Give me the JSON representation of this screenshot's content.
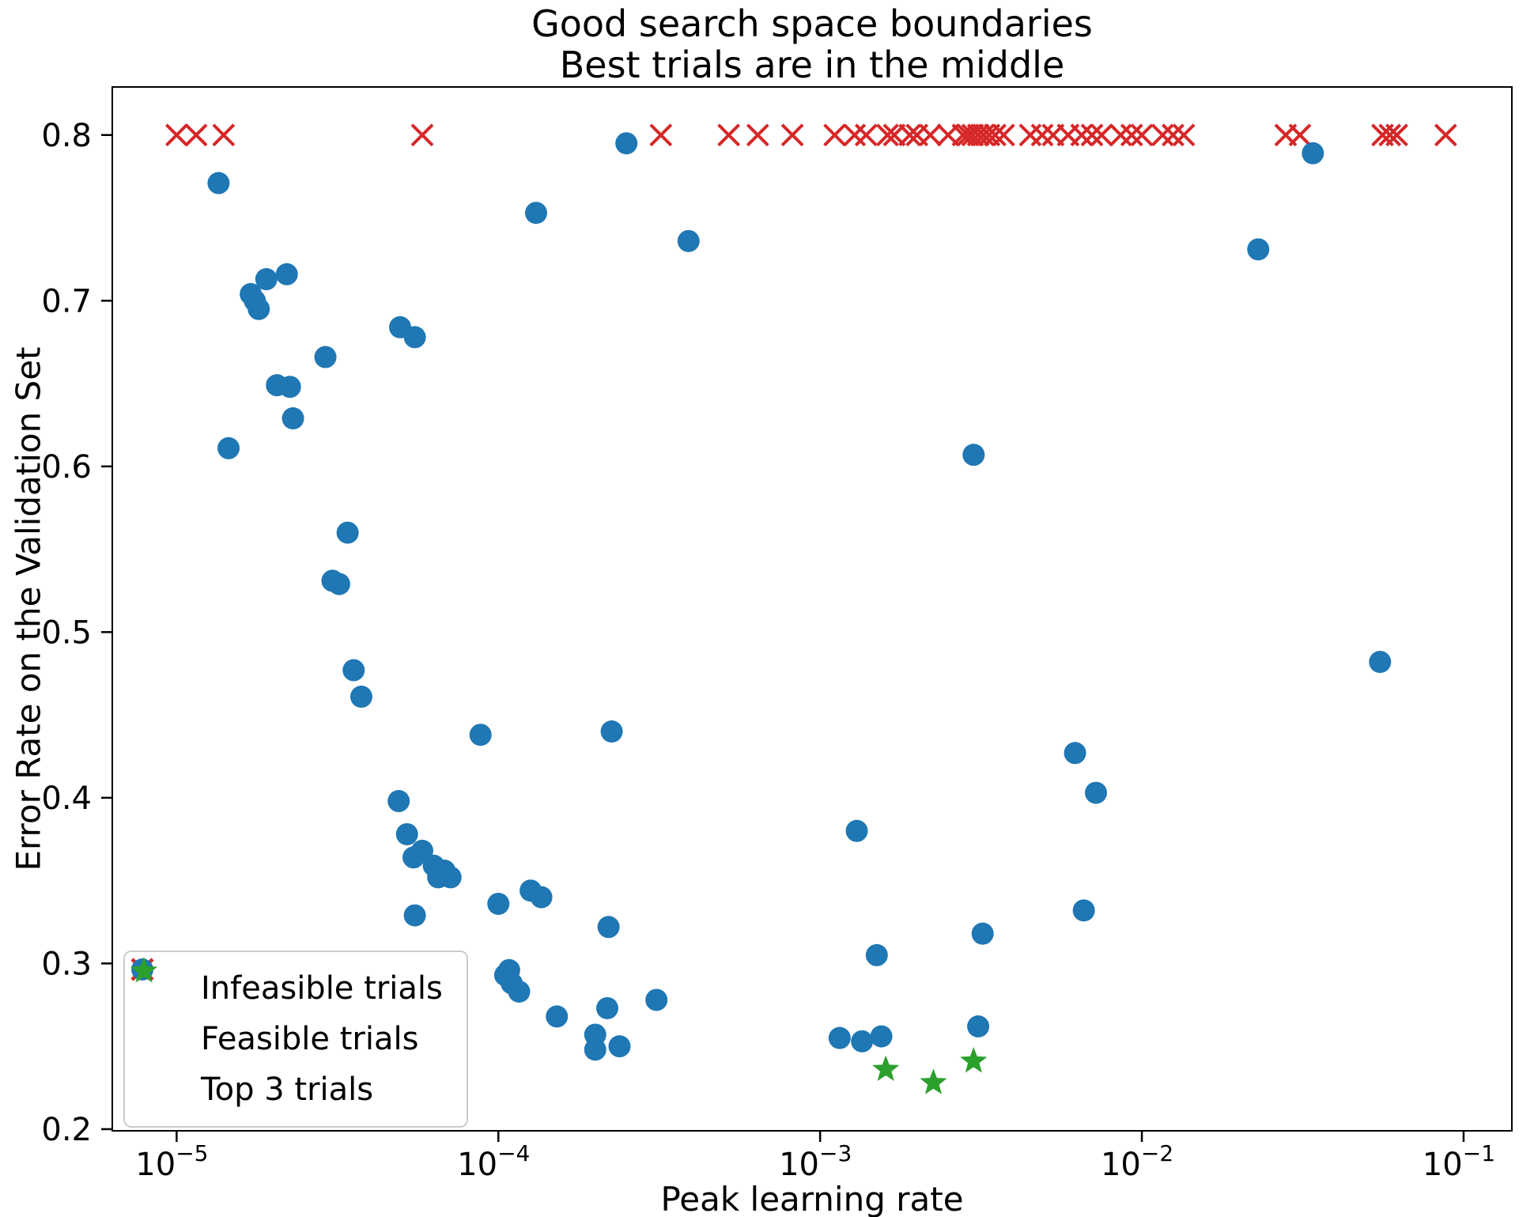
{
  "chart_data": {
    "type": "scatter",
    "title_lines": [
      "Good search space boundaries",
      "Best trials are in the middle"
    ],
    "xlabel": "Peak learning rate",
    "ylabel": "Error Rate on the Validation Set",
    "x_scale": "log10",
    "xlim_log10": [
      -5.2,
      -0.85
    ],
    "ylim": [
      0.199,
      0.829
    ],
    "x_tick_exponents": [
      -5,
      -4,
      -3,
      -2,
      -1
    ],
    "y_tick_values": [
      "0.2",
      "0.3",
      "0.4",
      "0.5",
      "0.6",
      "0.7",
      "0.8"
    ],
    "grid": false,
    "legend_position": "lower left",
    "series": [
      {
        "name": "Infeasible trials",
        "marker": "x",
        "color": "#d62728",
        "points": [
          [
            1e-05,
            0.8
          ],
          [
            1.15e-05,
            0.8
          ],
          [
            1.4e-05,
            0.8
          ],
          [
            5.8e-05,
            0.8
          ],
          [
            0.00032,
            0.8
          ],
          [
            0.00052,
            0.8
          ],
          [
            0.00064,
            0.8
          ],
          [
            0.00082,
            0.8
          ],
          [
            0.00111,
            0.8
          ],
          [
            0.00128,
            0.8
          ],
          [
            0.00139,
            0.8
          ],
          [
            0.00162,
            0.8
          ],
          [
            0.0017,
            0.8
          ],
          [
            0.0019,
            0.8
          ],
          [
            0.002,
            0.8
          ],
          [
            0.0022,
            0.8
          ],
          [
            0.0025,
            0.8
          ],
          [
            0.00278,
            0.8
          ],
          [
            0.00288,
            0.8
          ],
          [
            0.00298,
            0.8
          ],
          [
            0.0031,
            0.8
          ],
          [
            0.00322,
            0.8
          ],
          [
            0.00335,
            0.8
          ],
          [
            0.0035,
            0.8
          ],
          [
            0.00372,
            0.8
          ],
          [
            0.0045,
            0.8
          ],
          [
            0.0049,
            0.8
          ],
          [
            0.0053,
            0.8
          ],
          [
            0.0059,
            0.8
          ],
          [
            0.0065,
            0.8
          ],
          [
            0.007,
            0.8
          ],
          [
            0.0075,
            0.8
          ],
          [
            0.0086,
            0.8
          ],
          [
            0.0093,
            0.8
          ],
          [
            0.01,
            0.8
          ],
          [
            0.0116,
            0.8
          ],
          [
            0.0125,
            0.8
          ],
          [
            0.0135,
            0.8
          ],
          [
            0.028,
            0.8
          ],
          [
            0.031,
            0.8
          ],
          [
            0.056,
            0.8
          ],
          [
            0.059,
            0.8
          ],
          [
            0.062,
            0.8
          ],
          [
            0.088,
            0.8
          ]
        ]
      },
      {
        "name": "Feasible trials",
        "marker": "circle",
        "color": "#1f77b4",
        "points": [
          [
            1.35e-05,
            0.771
          ],
          [
            1.45e-05,
            0.611
          ],
          [
            1.7e-05,
            0.704
          ],
          [
            1.75e-05,
            0.7
          ],
          [
            1.8e-05,
            0.695
          ],
          [
            1.9e-05,
            0.713
          ],
          [
            2.05e-05,
            0.649
          ],
          [
            2.2e-05,
            0.716
          ],
          [
            2.25e-05,
            0.648
          ],
          [
            2.3e-05,
            0.629
          ],
          [
            2.9e-05,
            0.666
          ],
          [
            3.05e-05,
            0.531
          ],
          [
            3.2e-05,
            0.529
          ],
          [
            3.4e-05,
            0.56
          ],
          [
            3.55e-05,
            0.477
          ],
          [
            3.75e-05,
            0.461
          ],
          [
            4.95e-05,
            0.684
          ],
          [
            5.5e-05,
            0.678
          ],
          [
            4.9e-05,
            0.398
          ],
          [
            5.2e-05,
            0.378
          ],
          [
            5.45e-05,
            0.364
          ],
          [
            5.5e-05,
            0.329
          ],
          [
            5.8e-05,
            0.368
          ],
          [
            6.3e-05,
            0.359
          ],
          [
            6.5e-05,
            0.352
          ],
          [
            6.8e-05,
            0.356
          ],
          [
            7.1e-05,
            0.352
          ],
          [
            8.8e-05,
            0.438
          ],
          [
            0.0001,
            0.336
          ],
          [
            0.000105,
            0.293
          ],
          [
            0.000108,
            0.296
          ],
          [
            0.00011,
            0.288
          ],
          [
            0.000116,
            0.283
          ],
          [
            0.000126,
            0.344
          ],
          [
            0.000131,
            0.753
          ],
          [
            0.000136,
            0.34
          ],
          [
            0.000152,
            0.268
          ],
          [
            0.0002,
            0.257
          ],
          [
            0.0002,
            0.248
          ],
          [
            0.000218,
            0.273
          ],
          [
            0.00022,
            0.322
          ],
          [
            0.000225,
            0.44
          ],
          [
            0.000238,
            0.25
          ],
          [
            0.00025,
            0.795
          ],
          [
            0.00031,
            0.278
          ],
          [
            0.00039,
            0.736
          ],
          [
            0.00115,
            0.255
          ],
          [
            0.0013,
            0.38
          ],
          [
            0.00135,
            0.253
          ],
          [
            0.0015,
            0.305
          ],
          [
            0.00155,
            0.256
          ],
          [
            0.003,
            0.607
          ],
          [
            0.0031,
            0.262
          ],
          [
            0.0032,
            0.318
          ],
          [
            0.0062,
            0.427
          ],
          [
            0.0066,
            0.332
          ],
          [
            0.0072,
            0.403
          ],
          [
            0.023,
            0.731
          ],
          [
            0.034,
            0.789
          ],
          [
            0.055,
            0.482
          ]
        ]
      },
      {
        "name": "Top 3 trials",
        "marker": "star",
        "color": "#2ca02c",
        "points": [
          [
            0.0016,
            0.236
          ],
          [
            0.00225,
            0.228
          ],
          [
            0.003,
            0.241
          ]
        ]
      }
    ]
  }
}
